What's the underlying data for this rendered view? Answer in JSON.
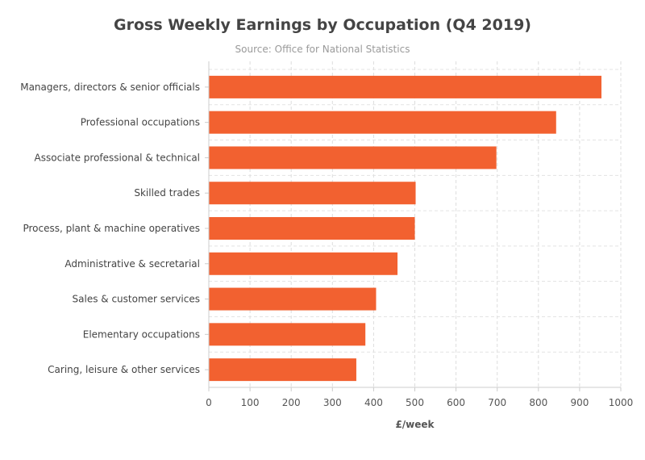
{
  "chart_data": {
    "type": "bar",
    "orientation": "horizontal",
    "title": "Gross Weekly Earnings by Occupation (Q4 2019)",
    "subtitle": "Source: Office for National Statistics",
    "xlabel": "£/week",
    "ylabel": "",
    "xlim": [
      0,
      1000
    ],
    "xticks": [
      "0",
      "100",
      "200",
      "300",
      "400",
      "500",
      "600",
      "700",
      "800",
      "900",
      "1000"
    ],
    "categories": [
      "Managers, directors & senior officials",
      "Professional occupations",
      "Associate professional & technical",
      "Skilled trades",
      "Process, plant & machine operatives",
      "Administrative & secretarial",
      "Sales & customer services",
      "Elementary occupations",
      "Caring, leisure & other services"
    ],
    "values": [
      953,
      843,
      698,
      502,
      500,
      458,
      406,
      380,
      358
    ],
    "bar_color": "#f26130",
    "grid": true
  }
}
